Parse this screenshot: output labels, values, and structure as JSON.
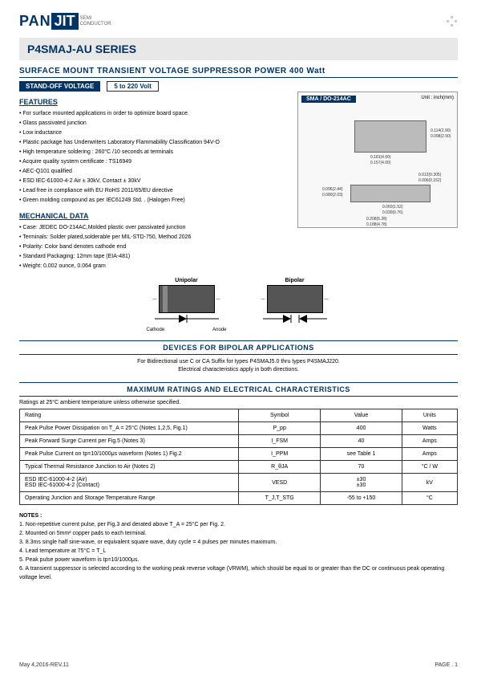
{
  "logo": {
    "pan": "PAN",
    "jit": "JIT",
    "sub1": "SEMI",
    "sub2": "CONDUCTOR"
  },
  "header": {
    "series": "P4SMAJ-AU SERIES",
    "subtitle": "SURFACE  MOUNT  TRANSIENT  VOLTAGE  SUPPRESSOR  POWER  400 Watt",
    "badge_standoff": "STAND-OFF  VOLTAGE",
    "badge_voltage": "5 to 220 Volt",
    "pkg_label": "SMA / DO-214AC",
    "pkg_unit": "Unit : inch(mm)"
  },
  "pkg_dims": {
    "d1": "0.181(4.60)",
    "d2": "0.157(4.00)",
    "d3": "0.114(2.90)",
    "d4": "0.098(2.50)",
    "d5": "0.096(2.44)",
    "d6": "0.080(2.03)",
    "d7": "0.060(1.52)",
    "d8": "0.030(0.76)",
    "d9": "0.012(0.305)",
    "d10": "0.006(0.152)",
    "d11": "0.208(5.28)",
    "d12": "0.188(4.78)"
  },
  "features": {
    "title": "FEATURES",
    "items": [
      "For surface mounted applications in order to optimize board space.",
      "Glass passivated junction",
      "Low inductance",
      "Plastic package has Underwriters Laboratory Flammability Classification 94V-O",
      "High temperature soldering : 260°C /10 seconds at terminals",
      "Acquire quality system certificate : TS16949",
      "AEC-Q101 qualified",
      "ESD IEC-61000-4-2 Air ± 30kV, Contact ± 30kV",
      "Lead free in compliance with EU RoHS 2011/65/EU directive",
      "Green molding compound as per IEC61249 Std. . (Halogen Free)"
    ]
  },
  "mechanical": {
    "title": "MECHANICAL DATA",
    "items": [
      "Case: JEDEC DO-214AC,Molded plastic over passivated junction",
      "Terminals: Solder plated,solderable per MIL-STD-750, Method 2026",
      "Polarity: Color band denotes cathode end",
      "Standard Packaging: 12mm tape (EIA-481)",
      "Weight: 0.002 ounce, 0.064 gram"
    ]
  },
  "diagrams": {
    "unipolar": "Unipolar",
    "bipolar": "Bipolar",
    "cathode": "Cathode",
    "anode": "Anode"
  },
  "bipolar": {
    "heading": "DEVICES  FOR  BIPOLAR  APPLICATIONS",
    "note1": "For Bidirectional use C or CA Suffix for types P4SMAJ5.0 thru types P4SMAJ220.",
    "note2": "Electrical characteristics apply in both directions."
  },
  "ratings": {
    "heading": "MAXIMUM   RATINGS   AND   ELECTRICAL   CHARACTERISTICS",
    "note": "Ratings at 25°C ambient temperature unless otherwise specified.",
    "columns": [
      "Rating",
      "Symbol",
      "Value",
      "Units"
    ],
    "rows": [
      [
        "Peak Pulse Power Dissipation on T_A = 25°C (Notes 1,2,5, Fig.1)",
        "P_pp",
        "400",
        "Watts"
      ],
      [
        "Peak Forward Surge Current per Fig.5 (Notes 3)",
        "I_FSM",
        "40",
        "Amps"
      ],
      [
        "Peak Pulse Current on tp=10/1000μs waveform (Notes 1) Fig.2",
        "I_PPM",
        "see Table 1",
        "Amps"
      ],
      [
        "Typical Thermal Resistance Junction to Air (Notes 2)",
        "R_θJA",
        "70",
        "°C / W"
      ],
      [
        "ESD IEC-61000-4-2 (Air)\nESD IEC-61000-4-2 (Contact)",
        "VESD",
        "±30\n±30",
        "kV"
      ],
      [
        "Operating Junction and Storage Temperature Range",
        "T_J,T_STG",
        "-55 to +150",
        "°C"
      ]
    ]
  },
  "notes": {
    "title": "NOTES :",
    "items": [
      "1. Non-repetitive current pulse, per Fig.3 and derated above T_A = 25°C per Fig. 2.",
      "2. Mounted on 5mm² copper pads to each terminal.",
      "3. 8.3ms single half sine-wave, or equivalent square wave, duty cycle = 4 pulses per minutes maximum.",
      "4. Lead temperature at 75°C = T_L",
      "5. Peak pulse power waveform is tp=10/1000μs.",
      "6.  A transient suppressor is selected according to the working peak reverse voltage (VRWM), which should be equal to or greater than the DC or continuous peak operating voltage level."
    ]
  },
  "footer": {
    "date": "May 4,2016-REV.11",
    "page": "PAGE .  1"
  }
}
